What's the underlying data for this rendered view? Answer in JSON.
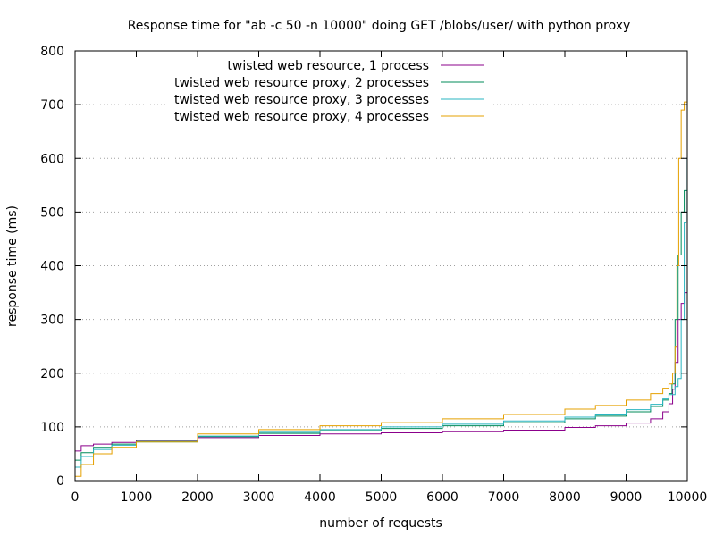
{
  "chart_data": {
    "type": "line",
    "title": "Response time for \"ab -c 50 -n 10000\" doing GET /blobs/user/ with python proxy",
    "xlabel": "number of requests",
    "ylabel": "response time (ms)",
    "xlim": [
      0,
      10000
    ],
    "ylim": [
      0,
      800
    ],
    "xticks": [
      0,
      1000,
      2000,
      3000,
      4000,
      5000,
      6000,
      7000,
      8000,
      9000,
      10000
    ],
    "yticks": [
      0,
      100,
      200,
      300,
      400,
      500,
      600,
      700,
      800
    ],
    "grid": "horizontal dotted",
    "legend_position": "top-left",
    "series": [
      {
        "name": "twisted web resource, 1 process",
        "color": "#8b008b",
        "points": [
          [
            0,
            55
          ],
          [
            100,
            65
          ],
          [
            300,
            68
          ],
          [
            600,
            71
          ],
          [
            1000,
            75
          ],
          [
            2000,
            80
          ],
          [
            3000,
            84
          ],
          [
            4000,
            87
          ],
          [
            5000,
            89
          ],
          [
            6000,
            91
          ],
          [
            7000,
            94
          ],
          [
            8000,
            99
          ],
          [
            8500,
            102
          ],
          [
            9000,
            107
          ],
          [
            9400,
            115
          ],
          [
            9600,
            128
          ],
          [
            9700,
            143
          ],
          [
            9760,
            170
          ],
          [
            9800,
            220
          ],
          [
            9850,
            300
          ],
          [
            9900,
            330
          ],
          [
            9950,
            350
          ],
          [
            10000,
            375
          ]
        ]
      },
      {
        "name": "twisted web resource proxy, 2 processes",
        "color": "#008b5a",
        "points": [
          [
            0,
            38
          ],
          [
            100,
            52
          ],
          [
            300,
            62
          ],
          [
            600,
            68
          ],
          [
            1000,
            73
          ],
          [
            2000,
            82
          ],
          [
            3000,
            88
          ],
          [
            4000,
            93
          ],
          [
            5000,
            97
          ],
          [
            6000,
            102
          ],
          [
            7000,
            108
          ],
          [
            8000,
            115
          ],
          [
            8500,
            120
          ],
          [
            9000,
            128
          ],
          [
            9400,
            138
          ],
          [
            9600,
            150
          ],
          [
            9700,
            162
          ],
          [
            9750,
            180
          ],
          [
            9800,
            300
          ],
          [
            9850,
            420
          ],
          [
            9900,
            500
          ],
          [
            9950,
            540
          ],
          [
            10000,
            580
          ]
        ]
      },
      {
        "name": "twisted web resource proxy, 3 processes",
        "color": "#2ab5c0",
        "points": [
          [
            0,
            25
          ],
          [
            100,
            45
          ],
          [
            300,
            58
          ],
          [
            600,
            66
          ],
          [
            1000,
            72
          ],
          [
            2000,
            83
          ],
          [
            3000,
            90
          ],
          [
            4000,
            95
          ],
          [
            5000,
            100
          ],
          [
            6000,
            105
          ],
          [
            7000,
            111
          ],
          [
            8000,
            118
          ],
          [
            8500,
            124
          ],
          [
            9000,
            132
          ],
          [
            9400,
            142
          ],
          [
            9600,
            152
          ],
          [
            9700,
            160
          ],
          [
            9800,
            175
          ],
          [
            9850,
            190
          ],
          [
            9900,
            300
          ],
          [
            9950,
            480
          ],
          [
            9980,
            600
          ],
          [
            10000,
            665
          ]
        ]
      },
      {
        "name": "twisted web resource proxy, 4 processes",
        "color": "#e5a000",
        "points": [
          [
            0,
            8
          ],
          [
            100,
            30
          ],
          [
            300,
            50
          ],
          [
            600,
            62
          ],
          [
            1000,
            72
          ],
          [
            2000,
            87
          ],
          [
            3000,
            95
          ],
          [
            4000,
            102
          ],
          [
            5000,
            108
          ],
          [
            6000,
            115
          ],
          [
            7000,
            123
          ],
          [
            8000,
            133
          ],
          [
            8500,
            140
          ],
          [
            9000,
            150
          ],
          [
            9400,
            162
          ],
          [
            9600,
            172
          ],
          [
            9700,
            180
          ],
          [
            9760,
            200
          ],
          [
            9800,
            250
          ],
          [
            9830,
            400
          ],
          [
            9860,
            600
          ],
          [
            9900,
            690
          ],
          [
            9950,
            705
          ],
          [
            10000,
            735
          ]
        ]
      }
    ]
  }
}
